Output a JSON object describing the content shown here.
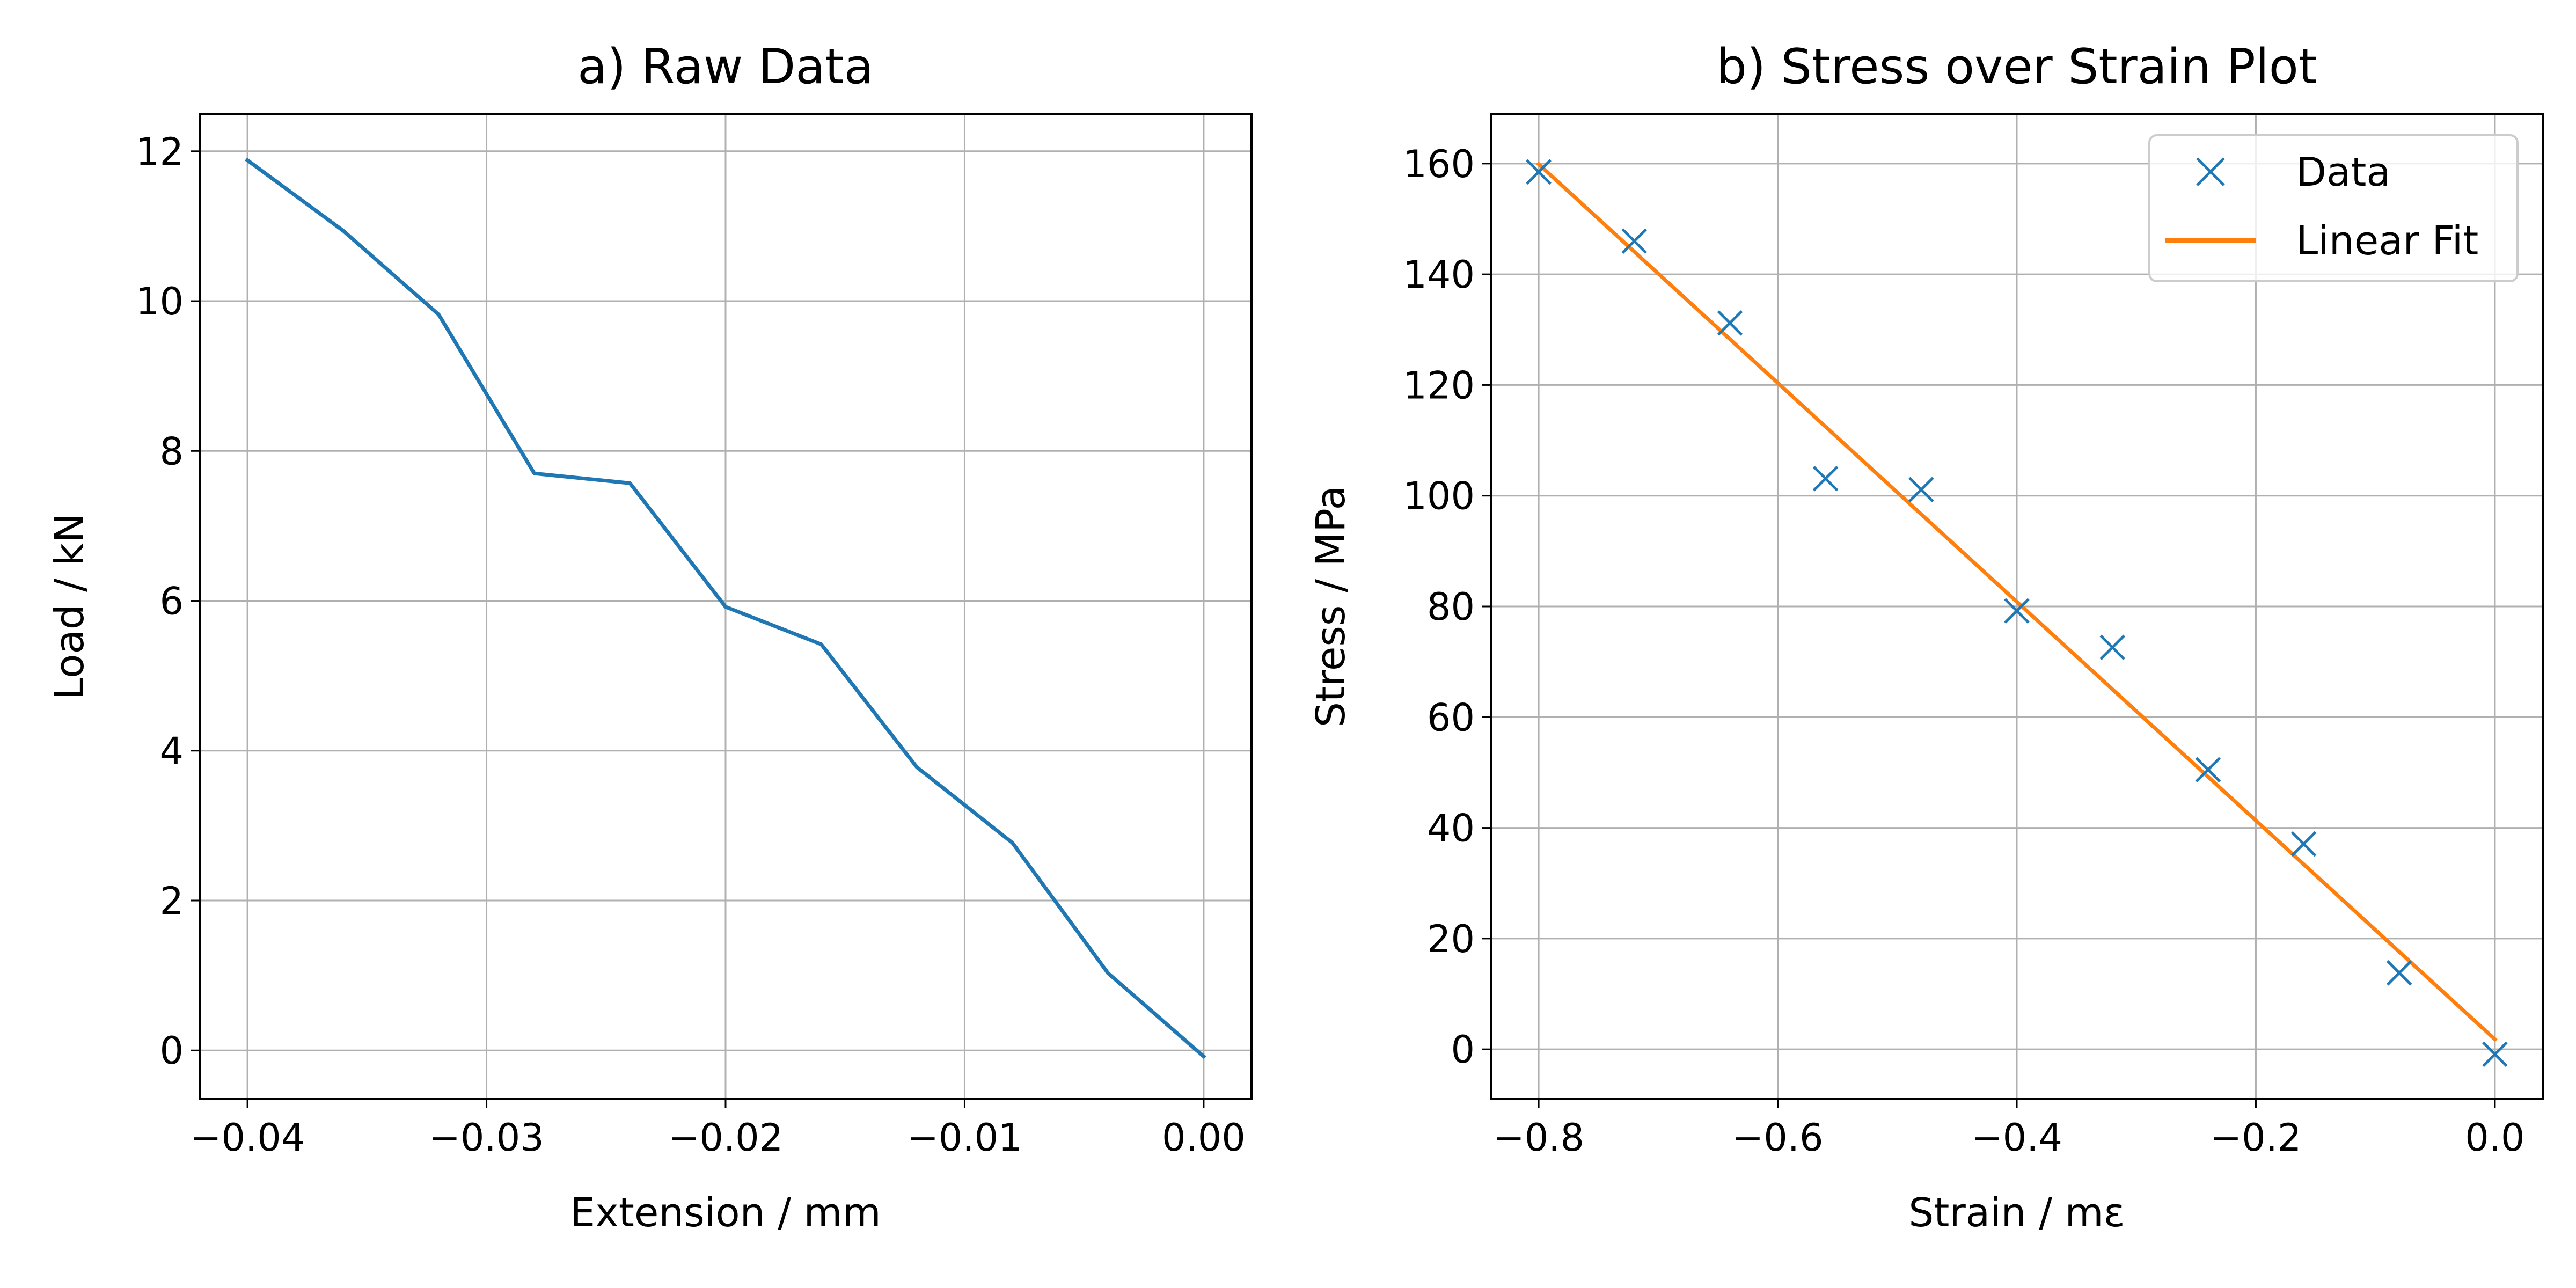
{
  "chart_data": [
    {
      "type": "line",
      "title": "a) Raw Data",
      "xlabel": "Extension / mm",
      "ylabel": "Load / kN",
      "xlim": [
        -0.042,
        0.002
      ],
      "ylim": [
        -0.65,
        12.5
      ],
      "grid": true,
      "xticks": [
        -0.04,
        -0.03,
        -0.02,
        -0.01,
        0.0
      ],
      "xtick_labels": [
        "−0.04",
        "−0.03",
        "−0.02",
        "−0.01",
        "0.00"
      ],
      "yticks": [
        0,
        2,
        4,
        6,
        8,
        10,
        12
      ],
      "ytick_labels": [
        "0",
        "2",
        "4",
        "6",
        "8",
        "10",
        "12"
      ],
      "series": [
        {
          "color": "#1f77b4",
          "x": [
            -0.04,
            -0.036,
            -0.032,
            -0.028,
            -0.024,
            -0.02,
            -0.016,
            -0.012,
            -0.008,
            -0.004,
            0.0
          ],
          "y": [
            11.88,
            10.94,
            9.82,
            7.7,
            7.57,
            5.92,
            5.42,
            3.78,
            2.77,
            1.03,
            -0.08
          ]
        }
      ]
    },
    {
      "type": "scatter",
      "title": "b) Stress over Strain Plot",
      "xlabel": "Strain / mε",
      "ylabel": "Stress / MPa",
      "xlim": [
        -0.84,
        0.04
      ],
      "ylim": [
        -9,
        169
      ],
      "grid": true,
      "xticks": [
        -0.8,
        -0.6,
        -0.4,
        -0.2,
        0.0
      ],
      "xtick_labels": [
        "−0.8",
        "−0.6",
        "−0.4",
        "−0.2",
        "0.0"
      ],
      "yticks": [
        0,
        20,
        40,
        60,
        80,
        100,
        120,
        140,
        160
      ],
      "ytick_labels": [
        "0",
        "20",
        "40",
        "60",
        "80",
        "100",
        "120",
        "140",
        "160"
      ],
      "legend_position": "upper right",
      "series": [
        {
          "name": "Data",
          "marker": "x",
          "color": "#1f77b4",
          "x": [
            -0.8,
            -0.72,
            -0.64,
            -0.56,
            -0.48,
            -0.4,
            -0.32,
            -0.24,
            -0.16,
            -0.08,
            0.0
          ],
          "y": [
            158.5,
            146.0,
            131.2,
            103.1,
            101.1,
            79.2,
            72.6,
            50.5,
            37.1,
            13.8,
            -0.9
          ]
        },
        {
          "name": "Linear Fit",
          "marker": "line",
          "color": "#ff7f0e",
          "x": [
            -0.8,
            0.0
          ],
          "y": [
            159.9,
            1.8
          ]
        }
      ]
    }
  ]
}
